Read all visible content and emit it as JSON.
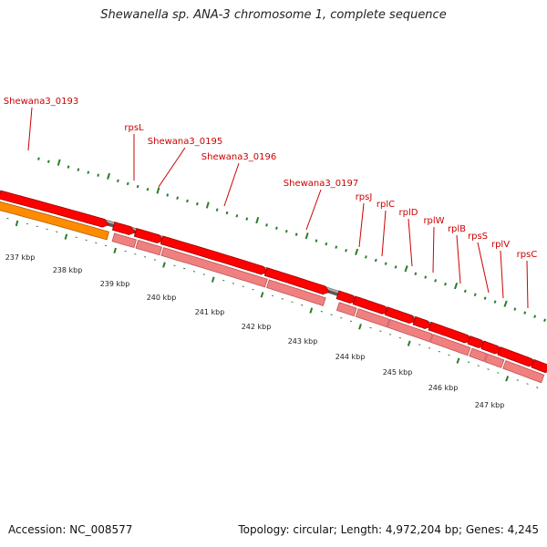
{
  "title": "Shewanella sp. ANA-3 chromosome 1, complete sequence",
  "footer": {
    "accession": "Accession: NC_008577",
    "topology": "Topology: circular; Length: 4,972,204 bp; Genes: 4,245"
  },
  "colors": {
    "cds": "#ff0000",
    "gene": "#f08080",
    "orange": "#ff8c00",
    "backbone": "#777777",
    "tick": "#2a7d2a",
    "label": "#cc0000",
    "scale_text": "#222222"
  },
  "scale": {
    "labels": [
      "237 kbp",
      "238 kbp",
      "239 kbp",
      "240 kbp",
      "241 kbp",
      "242 kbp",
      "243 kbp",
      "244 kbp",
      "245 kbp",
      "246 kbp",
      "247 kbp"
    ]
  },
  "features": [
    {
      "label": "Shewana3_0193",
      "color": "orange"
    },
    {
      "label": "rpsL"
    },
    {
      "label": "Shewana3_0195"
    },
    {
      "label": "Shewana3_0196"
    },
    {
      "label": "Shewana3_0197"
    },
    {
      "label": "rpsJ"
    },
    {
      "label": "rplC"
    },
    {
      "label": "rplD"
    },
    {
      "label": "rplW"
    },
    {
      "label": "rplB"
    },
    {
      "label": "rpsS"
    },
    {
      "label": "rplV"
    },
    {
      "label": "rpsC"
    }
  ]
}
